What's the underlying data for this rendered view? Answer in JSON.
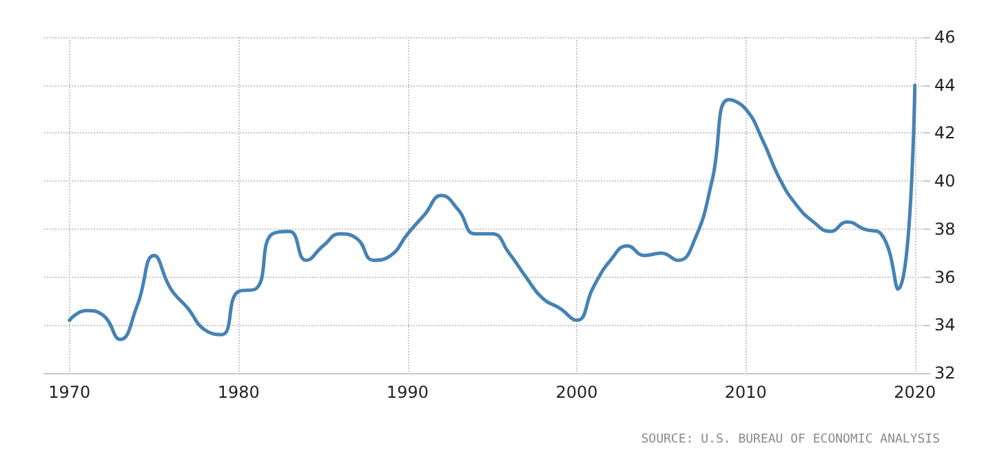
{
  "chart_data": {
    "type": "line",
    "x": [
      1970,
      1971,
      1972,
      1973,
      1974,
      1975,
      1976,
      1977,
      1978,
      1979,
      1980,
      1981,
      1982,
      1983,
      1984,
      1985,
      1986,
      1987,
      1988,
      1989,
      1990,
      1991,
      1992,
      1993,
      1994,
      1995,
      1996,
      1997,
      1998,
      1999,
      2000,
      2001,
      2002,
      2003,
      2004,
      2005,
      2006,
      2007,
      2008,
      2009,
      2010,
      2011,
      2012,
      2013,
      2014,
      2015,
      2016,
      2017,
      2018,
      2019,
      2020
    ],
    "series": [
      {
        "color": "#4682b4",
        "values": [
          34.2,
          34.6,
          34.4,
          33.4,
          34.8,
          36.9,
          35.5,
          34.7,
          33.8,
          33.6,
          35.4,
          35.5,
          37.8,
          37.9,
          36.7,
          37.3,
          37.8,
          37.6,
          36.7,
          36.9,
          37.8,
          38.6,
          39.4,
          38.8,
          37.8,
          37.8,
          37.0,
          36.0,
          35.1,
          34.7,
          34.2,
          35.6,
          36.7,
          37.3,
          36.9,
          37.0,
          36.7,
          37.6,
          40.0,
          43.4,
          43.0,
          41.7,
          40.1,
          39.0,
          38.3,
          37.9,
          38.3,
          38.0,
          37.8,
          35.5,
          44.0
        ]
      }
    ],
    "xlim": [
      1968.5,
      2020.5
    ],
    "xticks": [
      1970,
      1980,
      1990,
      2000,
      2010,
      2020
    ],
    "ylim": [
      32,
      46
    ],
    "yticks": [
      32,
      34,
      36,
      38,
      40,
      42,
      44,
      46
    ],
    "grid": true,
    "marker": "none",
    "line_style": "solid",
    "annotations": [
      "SOURCE: U.S. BUREAU OF ECONOMIC ANALYSIS"
    ]
  }
}
